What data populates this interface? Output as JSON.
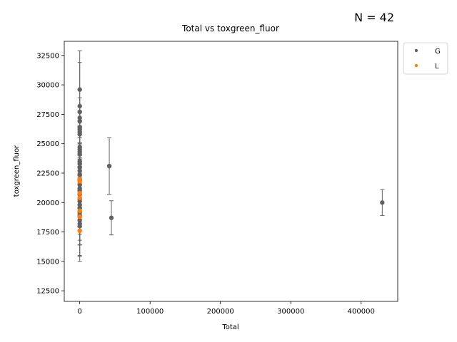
{
  "annotation": "N = 42",
  "chart_data": {
    "type": "scatter",
    "title": "Total vs toxgreen_fluor",
    "xlabel": "Total",
    "ylabel": "toxgreen_fluor",
    "xlim": [
      -22000,
      452000
    ],
    "ylim": [
      11600,
      33700
    ],
    "x_ticks": [
      0,
      100000,
      200000,
      300000,
      400000
    ],
    "y_ticks": [
      12500,
      15000,
      17500,
      20000,
      22500,
      25000,
      27500,
      30000,
      32500
    ],
    "x_tick_labels": [
      "0",
      "100000",
      "200000",
      "300000",
      "400000"
    ],
    "y_tick_labels": [
      "12500",
      "15000",
      "17500",
      "20000",
      "22500",
      "25000",
      "27500",
      "30000",
      "32500"
    ],
    "legend": {
      "placement": "outside-top-right",
      "entries": [
        "G",
        "L"
      ]
    },
    "colors": {
      "G": "#616161",
      "L": "#ff7f0e",
      "errorbar": "#616161"
    },
    "grid": false,
    "series": [
      {
        "name": "G",
        "points": [
          {
            "x": 0,
            "y": 29600,
            "err": 3300
          },
          {
            "x": 0,
            "y": 28200,
            "err": 3700
          },
          {
            "x": 0,
            "y": 27700,
            "err": 1200
          },
          {
            "x": 0,
            "y": 27200,
            "err": 1000
          },
          {
            "x": 0,
            "y": 26900,
            "err": 900
          },
          {
            "x": 0,
            "y": 26400,
            "err": 600
          },
          {
            "x": 0,
            "y": 26200,
            "err": 700
          },
          {
            "x": 0,
            "y": 26000,
            "err": 500
          },
          {
            "x": 0,
            "y": 25800,
            "err": 700
          },
          {
            "x": 0,
            "y": 24700,
            "err": 400
          },
          {
            "x": 0,
            "y": 24500,
            "err": 500
          },
          {
            "x": 0,
            "y": 24300,
            "err": 600
          },
          {
            "x": 0,
            "y": 24100,
            "err": 400
          },
          {
            "x": 0,
            "y": 23500,
            "err": 500
          },
          {
            "x": 0,
            "y": 23300,
            "err": 400
          },
          {
            "x": 0,
            "y": 23000,
            "err": 400
          },
          {
            "x": 0,
            "y": 22700,
            "err": 400
          },
          {
            "x": 0,
            "y": 22400,
            "err": 300
          },
          {
            "x": 0,
            "y": 21900,
            "err": 400
          },
          {
            "x": 0,
            "y": 21500,
            "err": 400
          },
          {
            "x": 0,
            "y": 21200,
            "err": 500
          },
          {
            "x": 0,
            "y": 21000,
            "err": 6000
          },
          {
            "x": 0,
            "y": 20700,
            "err": 5300
          },
          {
            "x": 0,
            "y": 20300,
            "err": 4800
          },
          {
            "x": 0,
            "y": 20100,
            "err": 3700
          },
          {
            "x": 0,
            "y": 19800,
            "err": 3400
          },
          {
            "x": 0,
            "y": 19500,
            "err": 2700
          },
          {
            "x": 0,
            "y": 19200,
            "err": 2800
          },
          {
            "x": 0,
            "y": 18900,
            "err": 700
          },
          {
            "x": 0,
            "y": 18500,
            "err": 600
          },
          {
            "x": 0,
            "y": 18200,
            "err": 500
          },
          {
            "x": 0,
            "y": 18000,
            "err": 400
          },
          {
            "x": 42000,
            "y": 23100,
            "err": 2400
          },
          {
            "x": 45000,
            "y": 18700,
            "err": 1450
          },
          {
            "x": 430000,
            "y": 20000,
            "err": 1100
          }
        ]
      },
      {
        "name": "L",
        "points": [
          {
            "x": 0,
            "y": 22000,
            "err": 200
          },
          {
            "x": 0,
            "y": 21800,
            "err": 200
          },
          {
            "x": 0,
            "y": 20800,
            "err": 300
          },
          {
            "x": 0,
            "y": 20400,
            "err": 300
          },
          {
            "x": 0,
            "y": 19300,
            "err": 300
          },
          {
            "x": 0,
            "y": 18800,
            "err": 300
          },
          {
            "x": 0,
            "y": 17600,
            "err": 300
          }
        ]
      }
    ]
  }
}
